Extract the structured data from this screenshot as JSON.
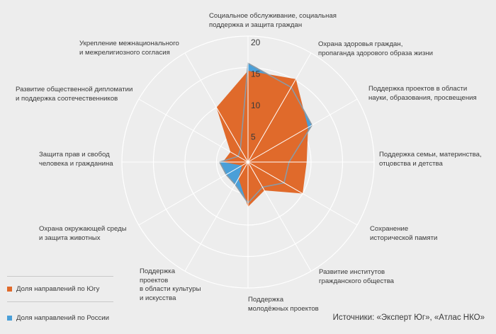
{
  "chart_data": {
    "type": "radar",
    "rmax": 20,
    "ticks": [
      5,
      10,
      15,
      20
    ],
    "categories": [
      "Социальное обслуживание, социальная\nподдержка и защита граждан",
      "Охрана здоровья граждан,\nпропаганда здорового образа жизни",
      "Поддержка проектов в области\nнауки, образования, просвещения",
      "Поддержка семьи, материнства,\nотцовства и детства",
      "Сохранение\nисторической памяти",
      "Развитие институтов\nгражданского общества",
      "Поддержка\nмолодёжных проектов",
      "Поддержка\nпроектов\nв области культуры\nи искусства",
      "Охрана окружающей среды\nи защита животных",
      "Защита прав и свобод\nчеловека и гражданина",
      "Развитие общественной дипломатии\nи поддержка соотечественников",
      "Укрепление межнационального\nи межрелигиозного согласия"
    ],
    "series": [
      {
        "name": "Доля направлений по Югу",
        "color": "#e06a2b",
        "values": [
          14.5,
          15.2,
          11,
          9.3,
          10,
          5.2,
          7.1,
          3,
          1.1,
          4,
          3.2,
          10
        ]
      },
      {
        "name": "Доля направлений по России",
        "color": "#4a9fd8",
        "values": [
          15.7,
          13.7,
          11.7,
          6.5,
          6.6,
          4.6,
          6.5,
          4.1,
          4,
          4.5,
          1.8,
          2.4
        ]
      }
    ]
  },
  "source": "Источники: «Эксперт Юг», «Атлас НКО»"
}
